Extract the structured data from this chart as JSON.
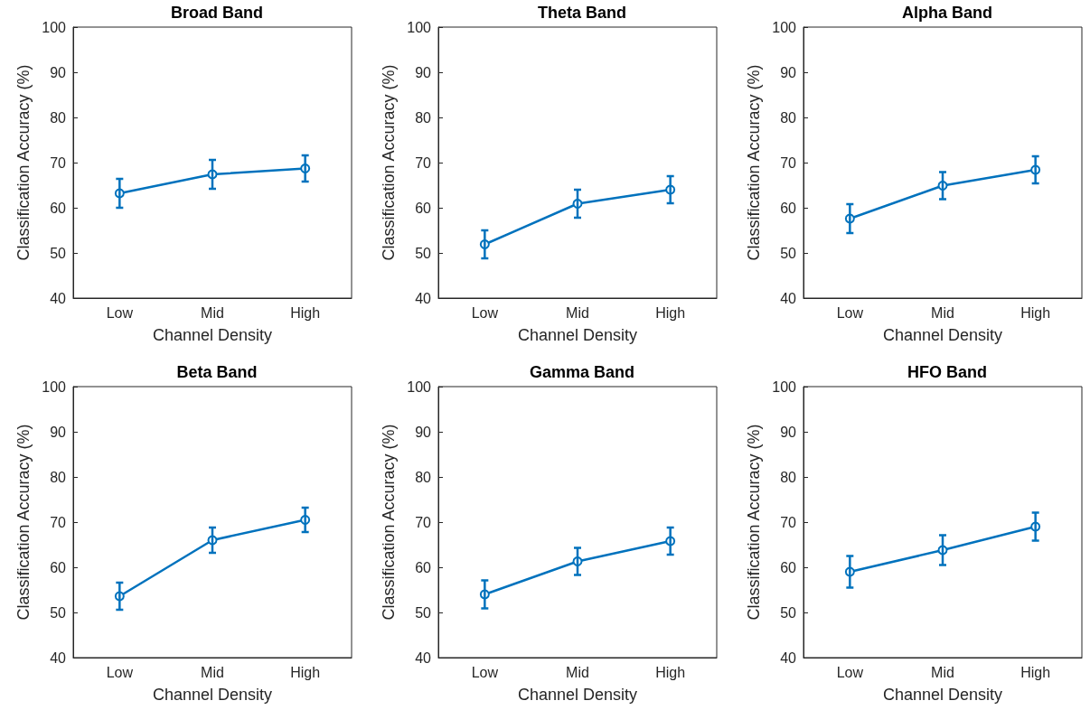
{
  "chart_data": [
    {
      "type": "line",
      "title": "Broad Band",
      "xlabel": "Channel Density",
      "ylabel": "Classification Accuracy (%)",
      "categories": [
        "Low",
        "Mid",
        "High"
      ],
      "color": "#0072bd",
      "marker": "circle",
      "values": [
        63.2,
        67.4,
        68.7
      ],
      "errors": [
        3.2,
        3.2,
        2.9
      ],
      "ylim": [
        40,
        100
      ],
      "yticks": [
        40,
        50,
        60,
        70,
        80,
        90,
        100
      ]
    },
    {
      "type": "line",
      "title": "Theta Band",
      "xlabel": "Channel Density",
      "ylabel": "Classification Accuracy (%)",
      "categories": [
        "Low",
        "Mid",
        "High"
      ],
      "color": "#0072bd",
      "marker": "circle",
      "values": [
        51.9,
        60.9,
        64.0
      ],
      "errors": [
        3.1,
        3.1,
        3.0
      ],
      "ylim": [
        40,
        100
      ],
      "yticks": [
        40,
        50,
        60,
        70,
        80,
        90,
        100
      ]
    },
    {
      "type": "line",
      "title": "Alpha Band",
      "xlabel": "Channel Density",
      "ylabel": "Classification Accuracy (%)",
      "categories": [
        "Low",
        "Mid",
        "High"
      ],
      "color": "#0072bd",
      "marker": "circle",
      "values": [
        57.6,
        64.9,
        68.4
      ],
      "errors": [
        3.2,
        3.0,
        3.0
      ],
      "ylim": [
        40,
        100
      ],
      "yticks": [
        40,
        50,
        60,
        70,
        80,
        90,
        100
      ]
    },
    {
      "type": "line",
      "title": "Beta Band",
      "xlabel": "Channel Density",
      "ylabel": "Classification Accuracy (%)",
      "categories": [
        "Low",
        "Mid",
        "High"
      ],
      "color": "#0072bd",
      "marker": "circle",
      "values": [
        53.6,
        66.0,
        70.5
      ],
      "errors": [
        3.0,
        2.8,
        2.7
      ],
      "ylim": [
        40,
        100
      ],
      "yticks": [
        40,
        50,
        60,
        70,
        80,
        90,
        100
      ]
    },
    {
      "type": "line",
      "title": "Gamma Band",
      "xlabel": "Channel Density",
      "ylabel": "Classification Accuracy (%)",
      "categories": [
        "Low",
        "Mid",
        "High"
      ],
      "color": "#0072bd",
      "marker": "circle",
      "values": [
        54.0,
        61.3,
        65.8
      ],
      "errors": [
        3.1,
        3.0,
        3.0
      ],
      "ylim": [
        40,
        100
      ],
      "yticks": [
        40,
        50,
        60,
        70,
        80,
        90,
        100
      ]
    },
    {
      "type": "line",
      "title": "HFO Band",
      "xlabel": "Channel Density",
      "ylabel": "Classification Accuracy (%)",
      "categories": [
        "Low",
        "Mid",
        "High"
      ],
      "color": "#0072bd",
      "marker": "circle",
      "values": [
        59.0,
        63.8,
        69.0
      ],
      "errors": [
        3.5,
        3.3,
        3.1
      ],
      "ylim": [
        40,
        100
      ],
      "yticks": [
        40,
        50,
        60,
        70,
        80,
        90,
        100
      ]
    }
  ]
}
